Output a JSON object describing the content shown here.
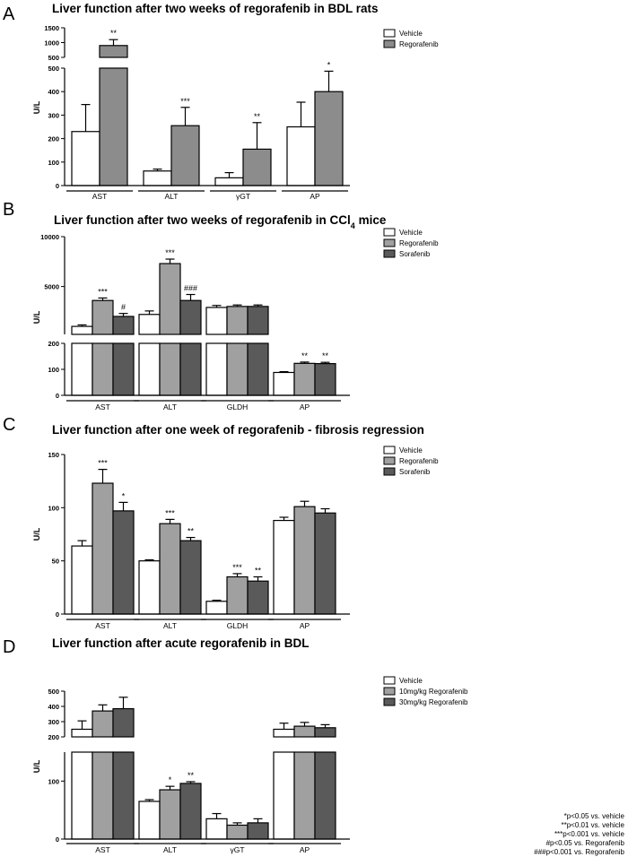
{
  "chart_data": [
    {
      "type": "bar",
      "panel": "A",
      "title": "Liver function after two weeks of regorafenib in BDL rats",
      "ylabel": "U/L",
      "categories": [
        "AST",
        "ALT",
        "γGT",
        "AP"
      ],
      "series": [
        {
          "name": "Vehicle",
          "color": "#ffffff",
          "values": [
            230,
            62,
            33,
            250
          ],
          "errors": [
            115,
            8,
            22,
            105
          ]
        },
        {
          "name": "Regorafenib",
          "color": "#8c8c8c",
          "values": [
            900,
            255,
            155,
            400
          ],
          "errors": [
            200,
            78,
            113,
            87
          ]
        }
      ],
      "annotations": [
        [
          "",
          "**"
        ],
        [
          "",
          "***"
        ],
        [
          "",
          "**"
        ],
        [
          "",
          "*"
        ]
      ],
      "axis": {
        "lower_ylim": [
          0,
          500
        ],
        "lower_ticks": [
          0,
          100,
          200,
          300,
          400,
          500
        ],
        "upper_ylim": [
          500,
          1500
        ],
        "upper_ticks": [
          500,
          1000,
          1500
        ],
        "tick_labels": {
          "0": "0",
          "100": "100",
          "200": "200",
          "300": "300",
          "400": "400",
          "500": "500",
          "1000": "1000",
          "1500": "1500"
        }
      }
    },
    {
      "type": "bar",
      "panel": "B",
      "title": "Liver function after two weeks of  regorafenib in CCl",
      "title_subscript": "4",
      "title_suffix": " mice",
      "ylabel": "U/L",
      "categories": [
        "AST",
        "ALT",
        "GLDH",
        "AP"
      ],
      "series": [
        {
          "name": "Vehicle",
          "color": "#ffffff",
          "values": [
            1000,
            2200,
            2900,
            88
          ],
          "errors": [
            150,
            350,
            200,
            3
          ]
        },
        {
          "name": "Regorafenib",
          "color": "#a0a0a0",
          "values": [
            3600,
            7300,
            3000,
            123
          ],
          "errors": [
            250,
            450,
            150,
            5
          ]
        },
        {
          "name": "Sorafenib",
          "color": "#5a5a5a",
          "values": [
            2000,
            3600,
            3000,
            122
          ],
          "errors": [
            300,
            600,
            150,
            5
          ]
        }
      ],
      "annotations": [
        [
          "",
          "***",
          "#"
        ],
        [
          "",
          "***",
          "###"
        ],
        [
          "",
          "",
          ""
        ],
        [
          "",
          "**",
          "**"
        ]
      ],
      "axis": {
        "lower_ylim": [
          0,
          200
        ],
        "lower_ticks": [
          0,
          100,
          200
        ],
        "upper_ylim": [
          200,
          10000
        ],
        "upper_ticks": [
          5000,
          10000
        ],
        "tick_labels": {
          "0": "0",
          "100": "100",
          "200": "200",
          "5000": "5000",
          "10000": "10000"
        }
      }
    },
    {
      "type": "bar",
      "panel": "C",
      "title": "Liver function after one week of regorafenib - fibrosis regression",
      "ylabel": "U/L",
      "categories": [
        "AST",
        "ALT",
        "GLDH",
        "AP"
      ],
      "series": [
        {
          "name": "Vehicle",
          "color": "#ffffff",
          "values": [
            64,
            50,
            12,
            88
          ],
          "errors": [
            5,
            1,
            1,
            3
          ]
        },
        {
          "name": "Regorafenib",
          "color": "#a0a0a0",
          "values": [
            123,
            85,
            35,
            101
          ],
          "errors": [
            13,
            4,
            3,
            5
          ]
        },
        {
          "name": "Sorafenib",
          "color": "#5a5a5a",
          "values": [
            97,
            69,
            31,
            95
          ],
          "errors": [
            8,
            3,
            4,
            4
          ]
        }
      ],
      "annotations": [
        [
          "",
          "***",
          "*"
        ],
        [
          "",
          "***",
          "**"
        ],
        [
          "",
          "***",
          "**"
        ],
        [
          "",
          "",
          ""
        ]
      ],
      "axis": {
        "ylim": [
          0,
          150
        ],
        "ticks": [
          0,
          50,
          100,
          150
        ],
        "tick_labels": {
          "0": "0",
          "50": "50",
          "100": "100",
          "150": "150"
        }
      }
    },
    {
      "type": "bar",
      "panel": "D",
      "title": "Liver function after acute regorafenib in BDL",
      "ylabel": "U/L",
      "categories": [
        "AST",
        "ALT",
        "γGT",
        "AP"
      ],
      "series": [
        {
          "name": "Vehicle",
          "color": "#ffffff",
          "values": [
            250,
            65,
            35,
            250
          ],
          "errors": [
            55,
            3,
            9,
            40
          ]
        },
        {
          "name": "10mg/kg Regorafenib",
          "color": "#a0a0a0",
          "values": [
            370,
            85,
            24,
            270
          ],
          "errors": [
            40,
            6,
            4,
            25
          ]
        },
        {
          "name": "30mg/kg Regorafenib",
          "color": "#5a5a5a",
          "values": [
            385,
            96,
            28,
            260
          ],
          "errors": [
            75,
            3,
            7,
            20
          ]
        }
      ],
      "annotations": [
        [
          "",
          "",
          ""
        ],
        [
          "",
          "*",
          "**"
        ],
        [
          "",
          "",
          ""
        ],
        [
          "",
          "",
          ""
        ]
      ],
      "axis": {
        "lower_ylim": [
          0,
          150
        ],
        "lower_ticks": [
          0,
          100
        ],
        "upper_ylim": [
          200,
          500
        ],
        "upper_ticks": [
          200,
          300,
          400,
          500
        ],
        "tick_labels": {
          "0": "0",
          "100": "100",
          "200": "200",
          "300": "300",
          "400": "400",
          "500": "500"
        }
      }
    }
  ],
  "panel_letters": [
    "A",
    "B",
    "C",
    "D"
  ],
  "footnotes": [
    "*p<0.05 vs. vehicle",
    "**p<0.01 vs. vehicle",
    "***p<0.001 vs. vehicle",
    "#p<0.05 vs. Regorafenib",
    "###p<0.001 vs. Regorafenib"
  ]
}
